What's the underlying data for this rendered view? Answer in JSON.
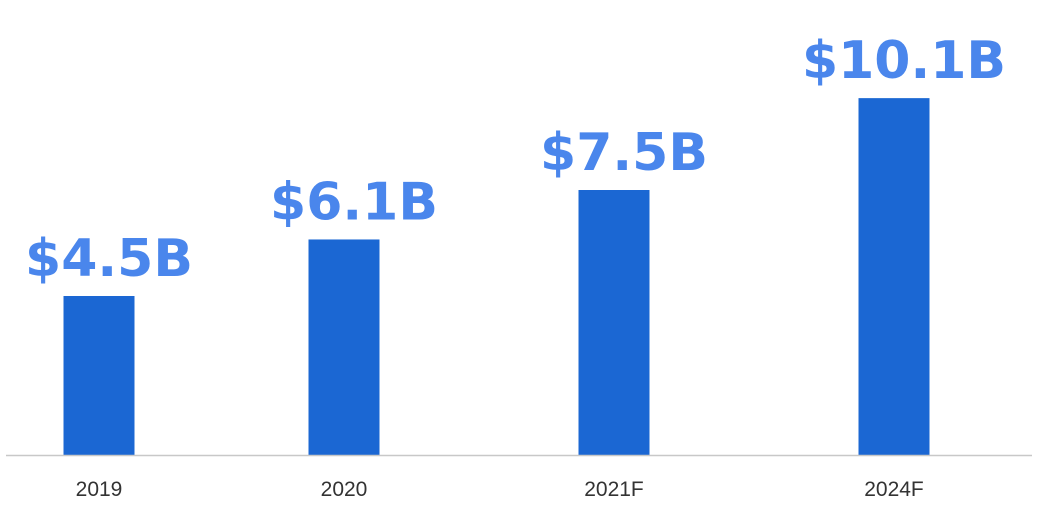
{
  "chart_data": {
    "type": "bar",
    "categories": [
      "2019",
      "2020",
      "2021F",
      "2024F"
    ],
    "values": [
      4.5,
      6.1,
      7.5,
      10.1
    ],
    "data_labels": [
      "$4.5B",
      "$6.1B",
      "$7.5B",
      "$10.1B"
    ],
    "title": "",
    "xlabel": "",
    "ylabel": "",
    "ylim": [
      0,
      12
    ],
    "grid": false,
    "legend": "none"
  },
  "colors": {
    "bar": "#1b67d3",
    "label": "#4a86ec",
    "axis": "#c8c8c8",
    "tick_text": "#333333"
  }
}
